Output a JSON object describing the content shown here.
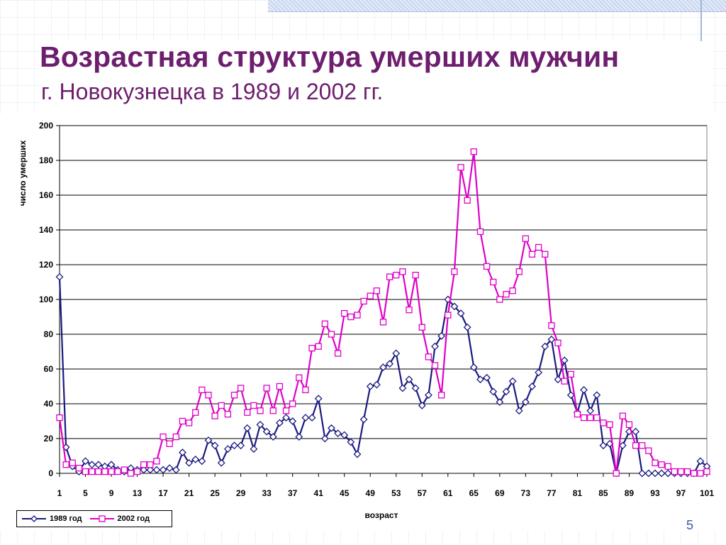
{
  "slide": {
    "title": "Возрастная структура умерших мужчин",
    "subtitle": "г. Новокузнецка в 1989 и 2002 гг.",
    "page_number": "5"
  },
  "chart_data": {
    "type": "line",
    "title": "",
    "xlabel": "возраст",
    "ylabel": "число умерших",
    "ylim": [
      0,
      200
    ],
    "yticks": [
      0,
      20,
      40,
      60,
      80,
      100,
      120,
      140,
      160,
      180,
      200
    ],
    "xticks": [
      1,
      5,
      9,
      13,
      17,
      21,
      25,
      29,
      33,
      37,
      41,
      45,
      49,
      53,
      57,
      61,
      65,
      69,
      73,
      77,
      81,
      85,
      89,
      93,
      97,
      101
    ],
    "x": [
      1,
      2,
      3,
      4,
      5,
      6,
      7,
      8,
      9,
      10,
      11,
      12,
      13,
      14,
      15,
      16,
      17,
      18,
      19,
      20,
      21,
      22,
      23,
      24,
      25,
      26,
      27,
      28,
      29,
      30,
      31,
      32,
      33,
      34,
      35,
      36,
      37,
      38,
      39,
      40,
      41,
      42,
      43,
      44,
      45,
      46,
      47,
      48,
      49,
      50,
      51,
      52,
      53,
      54,
      55,
      56,
      57,
      58,
      59,
      60,
      61,
      62,
      63,
      64,
      65,
      66,
      67,
      68,
      69,
      70,
      71,
      72,
      73,
      74,
      75,
      76,
      77,
      78,
      79,
      80,
      81,
      82,
      83,
      84,
      85,
      86,
      87,
      88,
      89,
      90,
      91,
      92,
      93,
      94,
      95,
      96,
      97,
      98,
      99,
      100,
      101
    ],
    "grid": "horizontal",
    "legend_position": "bottom-left",
    "series": [
      {
        "name": "1989 год",
        "color": "#1a1a80",
        "marker": "diamond",
        "values": [
          113,
          15,
          4,
          1,
          7,
          5,
          5,
          4,
          5,
          2,
          1,
          3,
          2,
          2,
          2,
          2,
          2,
          3,
          2,
          12,
          6,
          8,
          7,
          19,
          16,
          6,
          14,
          16,
          16,
          26,
          14,
          28,
          24,
          21,
          29,
          32,
          30,
          21,
          32,
          32,
          43,
          20,
          26,
          23,
          22,
          18,
          11,
          31,
          50,
          51,
          61,
          63,
          69,
          49,
          54,
          49,
          39,
          45,
          73,
          79,
          100,
          96,
          92,
          84,
          61,
          54,
          55,
          47,
          41,
          47,
          53,
          36,
          41,
          50,
          58,
          73,
          77,
          54,
          65,
          45,
          35,
          48,
          36,
          45,
          16,
          17,
          0,
          16,
          24,
          24,
          0,
          0,
          0,
          0,
          0,
          0,
          0,
          0,
          0,
          7,
          4
        ]
      },
      {
        "name": "2002 год",
        "color": "#e000c8",
        "marker": "square",
        "values": [
          32,
          5,
          6,
          3,
          1,
          1,
          1,
          1,
          1,
          1,
          2,
          0,
          1,
          5,
          5,
          7,
          21,
          17,
          21,
          30,
          29,
          35,
          48,
          45,
          33,
          39,
          34,
          45,
          49,
          35,
          39,
          36,
          49,
          36,
          50,
          36,
          40,
          55,
          48,
          72,
          73,
          86,
          80,
          69,
          92,
          90,
          91,
          99,
          102,
          105,
          87,
          113,
          114,
          116,
          94,
          114,
          84,
          67,
          62,
          45,
          91,
          116,
          176,
          157,
          185,
          139,
          119,
          110,
          100,
          103,
          105,
          116,
          135,
          126,
          130,
          126,
          85,
          75,
          53,
          57,
          34,
          32,
          32,
          32,
          29,
          28,
          0,
          33,
          28,
          16,
          16,
          13,
          6,
          5,
          4,
          1,
          1,
          1,
          0,
          0,
          1
        ]
      }
    ]
  }
}
